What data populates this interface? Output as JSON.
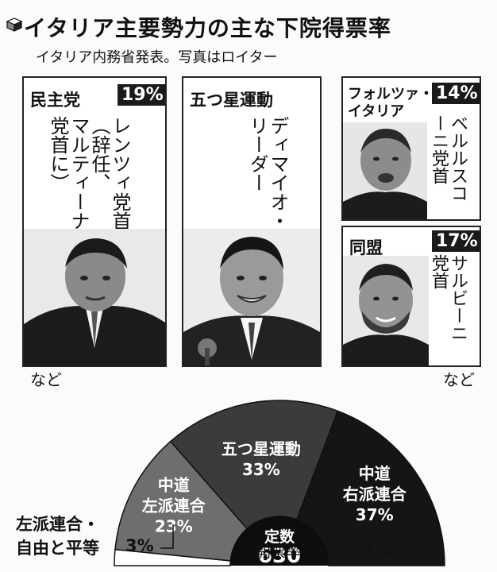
{
  "header": {
    "title": "イタリア主要勢力の主な下院得票率",
    "subtitle": "イタリア内務省発表。写真はロイター",
    "icon": "cube-icon"
  },
  "panels": [
    {
      "party": "民主党",
      "pct": "19%",
      "caption": "レンツィ党首\n（辞任、\nマルティーナ\n党首に）",
      "nado": "など"
    },
    {
      "party": "五つ星運動",
      "caption": "ディマイオ・\nリーダー"
    },
    {
      "party": "フォルツァ・\nイタリア",
      "pct": "14%",
      "caption": "ベルルスコ\nーニ党首"
    },
    {
      "party": "同盟",
      "pct": "17%",
      "caption": "サルビーニ\n党首",
      "nado": "など"
    }
  ],
  "chart_data": {
    "type": "pie",
    "subtype": "semicircle",
    "center_label": "定数",
    "center_value": "630",
    "segments": [
      {
        "name": "左派連合・\n自由と平等",
        "value": 3,
        "label": "3%",
        "color": "#ffffff"
      },
      {
        "name": "中道\n左派連合",
        "value": 23,
        "label": "23%",
        "color": "#6e6e6e"
      },
      {
        "name": "五つ星運動",
        "value": 33,
        "label": "33%",
        "color": "#3b3b3b"
      },
      {
        "name": "中道\n右派連合",
        "value": 37,
        "label": "37%",
        "color": "#151515"
      }
    ],
    "footnote": "開票率99%。3月14日現在"
  }
}
